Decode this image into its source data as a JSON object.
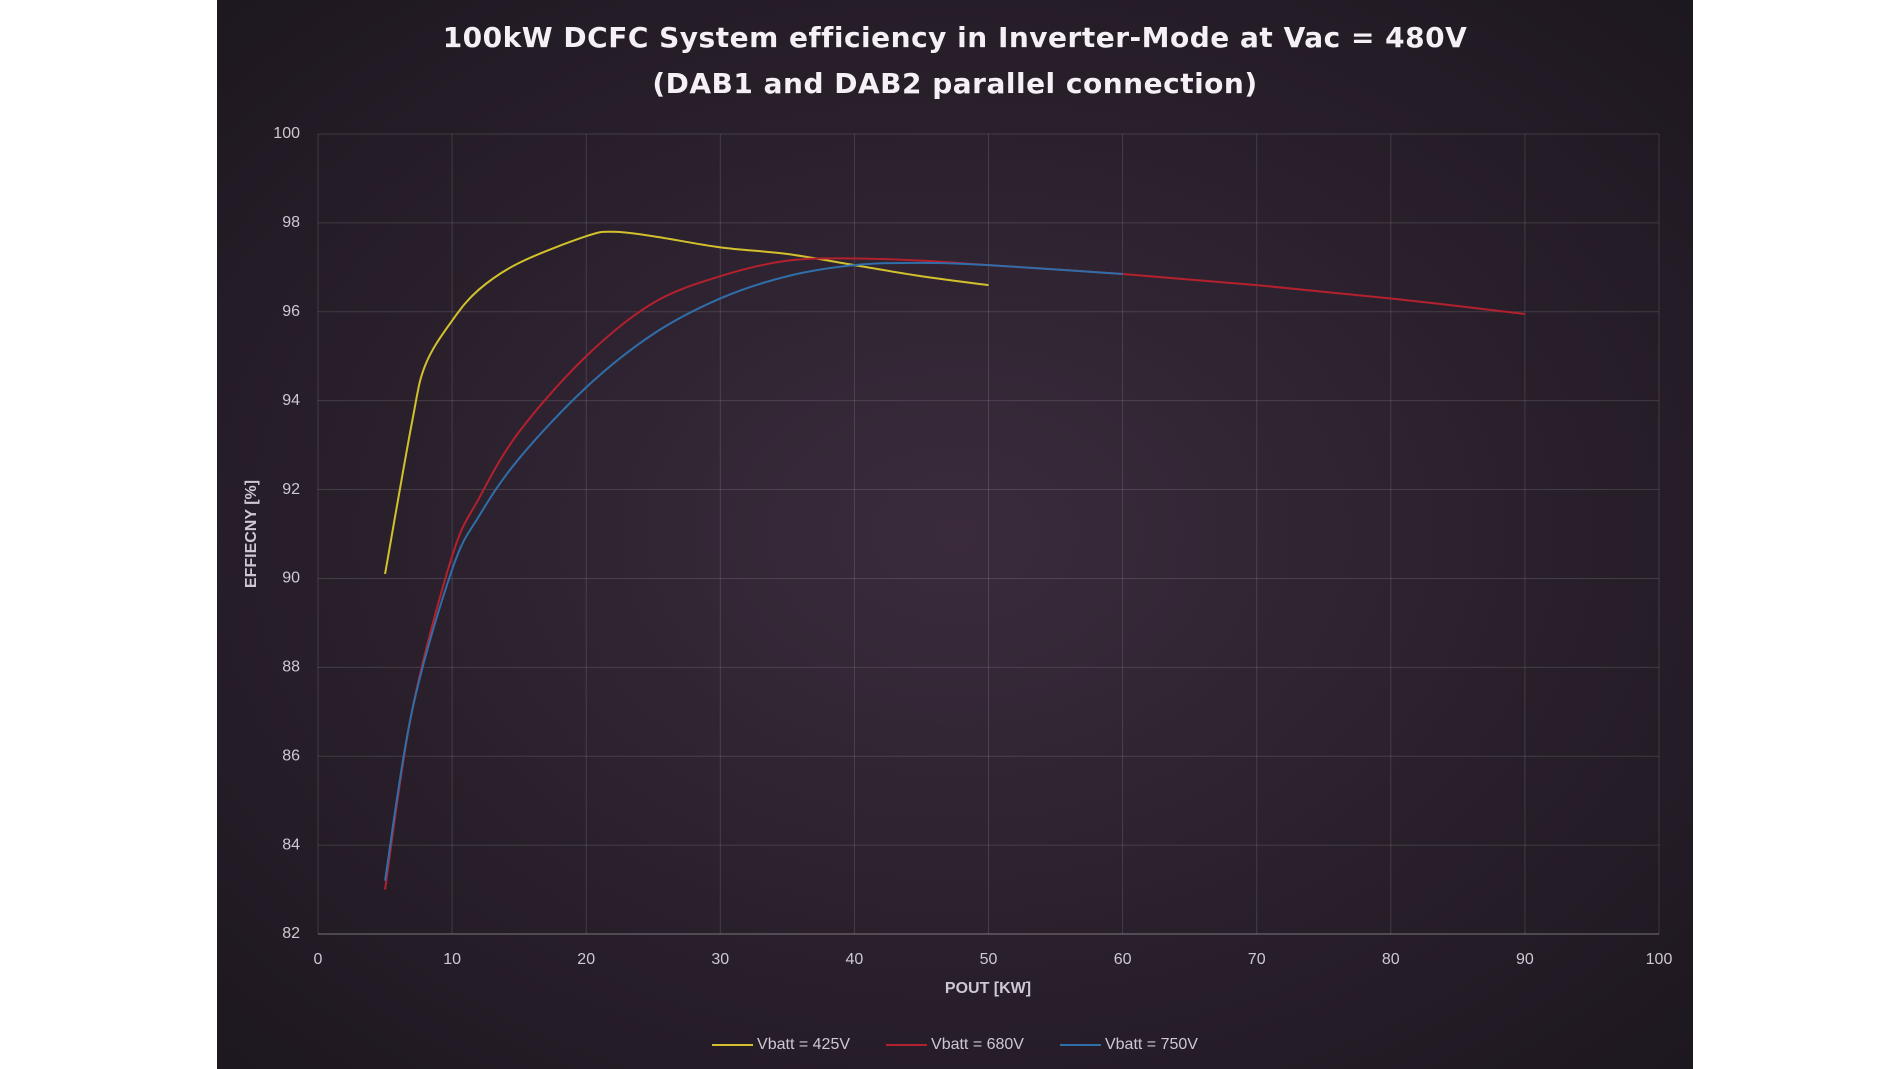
{
  "chart_data": {
    "type": "line",
    "title": [
      "100kW DCFC System efficiency in Inverter-Mode at Vac = 480V",
      "(DAB1 and DAB2 parallel connection)"
    ],
    "x_label": "POUT [KW]",
    "y_label": "EFFIECNY [%]",
    "xlim": [
      0,
      100
    ],
    "xticks": [
      0,
      10,
      20,
      30,
      40,
      50,
      60,
      70,
      80,
      90,
      100
    ],
    "ylim": [
      82,
      100
    ],
    "yticks": [
      82,
      84,
      86,
      88,
      90,
      92,
      94,
      96,
      98,
      100
    ],
    "grid": true,
    "legend": "bottom",
    "series": [
      {
        "name": "Vbatt = 425V",
        "color": "#d2c12c",
        "x": [
          5,
          7,
          8,
          10,
          12,
          15,
          20,
          22,
          25,
          30,
          35,
          40,
          45,
          50
        ],
        "values": [
          90.1,
          93.5,
          94.8,
          95.8,
          96.5,
          97.1,
          97.7,
          97.8,
          97.7,
          97.45,
          97.3,
          97.05,
          96.8,
          96.6
        ]
      },
      {
        "name": "Vbatt = 680V",
        "color": "#b3202e",
        "x": [
          5,
          7,
          10,
          12,
          15,
          20,
          25,
          30,
          35,
          40,
          45,
          50,
          60,
          70,
          80,
          90
        ],
        "values": [
          83.0,
          87.0,
          90.5,
          91.8,
          93.3,
          95.0,
          96.2,
          96.8,
          97.15,
          97.2,
          97.15,
          97.05,
          96.85,
          96.6,
          96.3,
          95.95
        ]
      },
      {
        "name": "Vbatt = 750V",
        "color": "#2f6ea8",
        "x": [
          5,
          7,
          10,
          12,
          15,
          20,
          25,
          30,
          35,
          40,
          45,
          50,
          60
        ],
        "values": [
          83.2,
          87.0,
          90.2,
          91.4,
          92.7,
          94.3,
          95.5,
          96.3,
          96.8,
          97.05,
          97.1,
          97.05,
          96.85
        ]
      }
    ]
  }
}
